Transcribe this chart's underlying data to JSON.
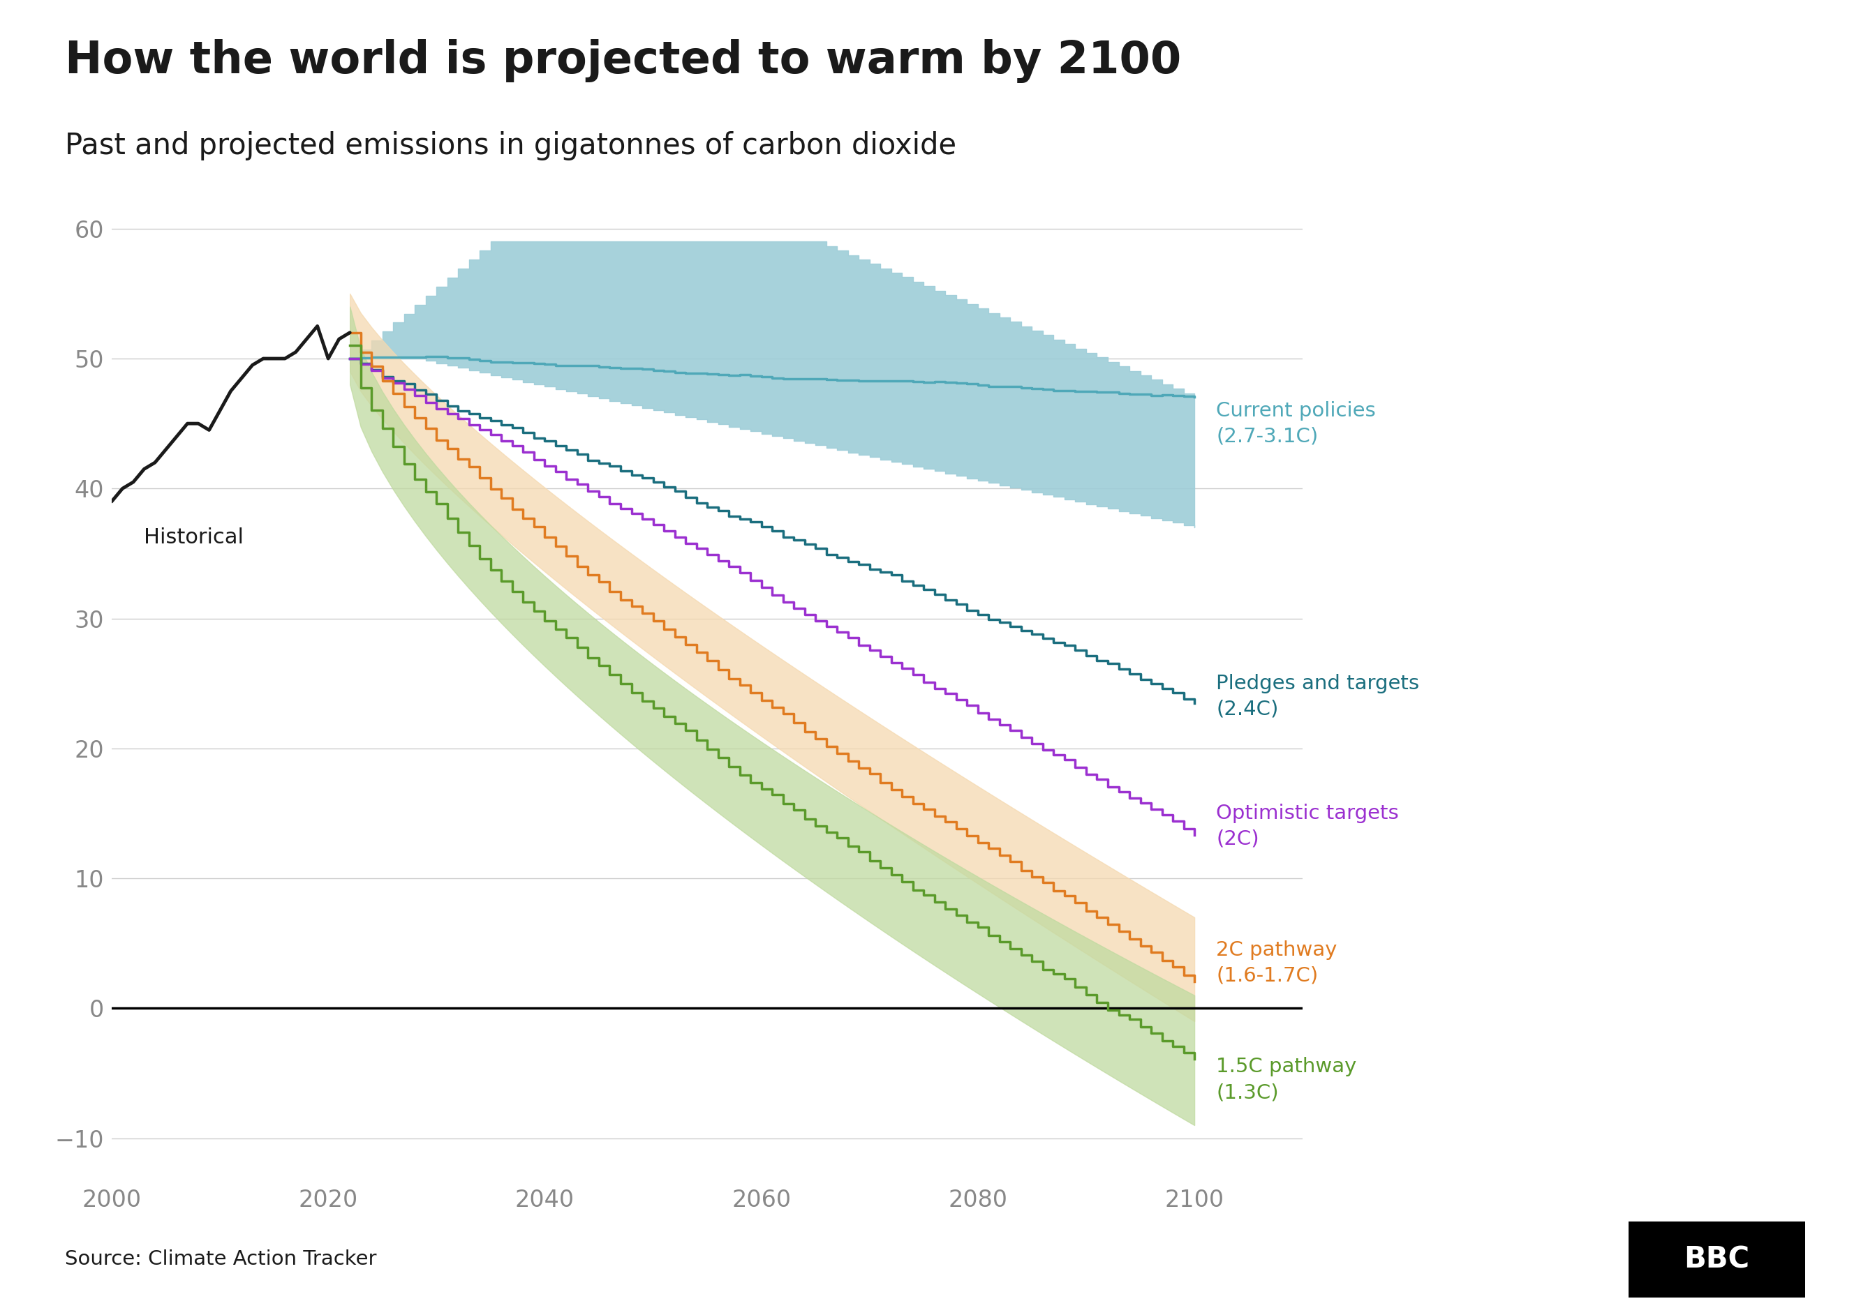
{
  "title": "How the world is projected to warm by 2100",
  "subtitle": "Past and projected emissions in gigatonnes of carbon dioxide",
  "source": "Source: Climate Action Tracker",
  "xlim": [
    2000,
    2110
  ],
  "ylim": [
    -13,
    63
  ],
  "yticks": [
    -10,
    0,
    10,
    20,
    30,
    40,
    50,
    60
  ],
  "xticks": [
    2000,
    2020,
    2040,
    2060,
    2080,
    2100
  ],
  "background_color": "#ffffff",
  "title_color": "#1a1a1a",
  "subtitle_color": "#1a1a1a",
  "axis_color": "#888888",
  "grid_color": "#cccccc",
  "zero_line_color": "#000000",
  "historical_color": "#1a1a1a",
  "current_policies_color": "#4fa8b8",
  "current_policies_fill": "#9ecdd8",
  "pledges_color": "#1a6e7e",
  "optimistic_color": "#9b30d0",
  "pathway_2c_color": "#e07b20",
  "pathway_2c_fill": "#f5d9b0",
  "pathway_15c_color": "#5a9a2a",
  "pathway_15c_fill": "#c0daa0",
  "label_current": "Current policies\n(2.7-3.1C)",
  "label_pledges": "Pledges and targets\n(2.4C)",
  "label_optimistic": "Optimistic targets\n(2C)",
  "label_2c": "2C pathway\n(1.6-1.7C)",
  "label_15c": "1.5C pathway\n(1.3C)",
  "label_historical": "Historical"
}
